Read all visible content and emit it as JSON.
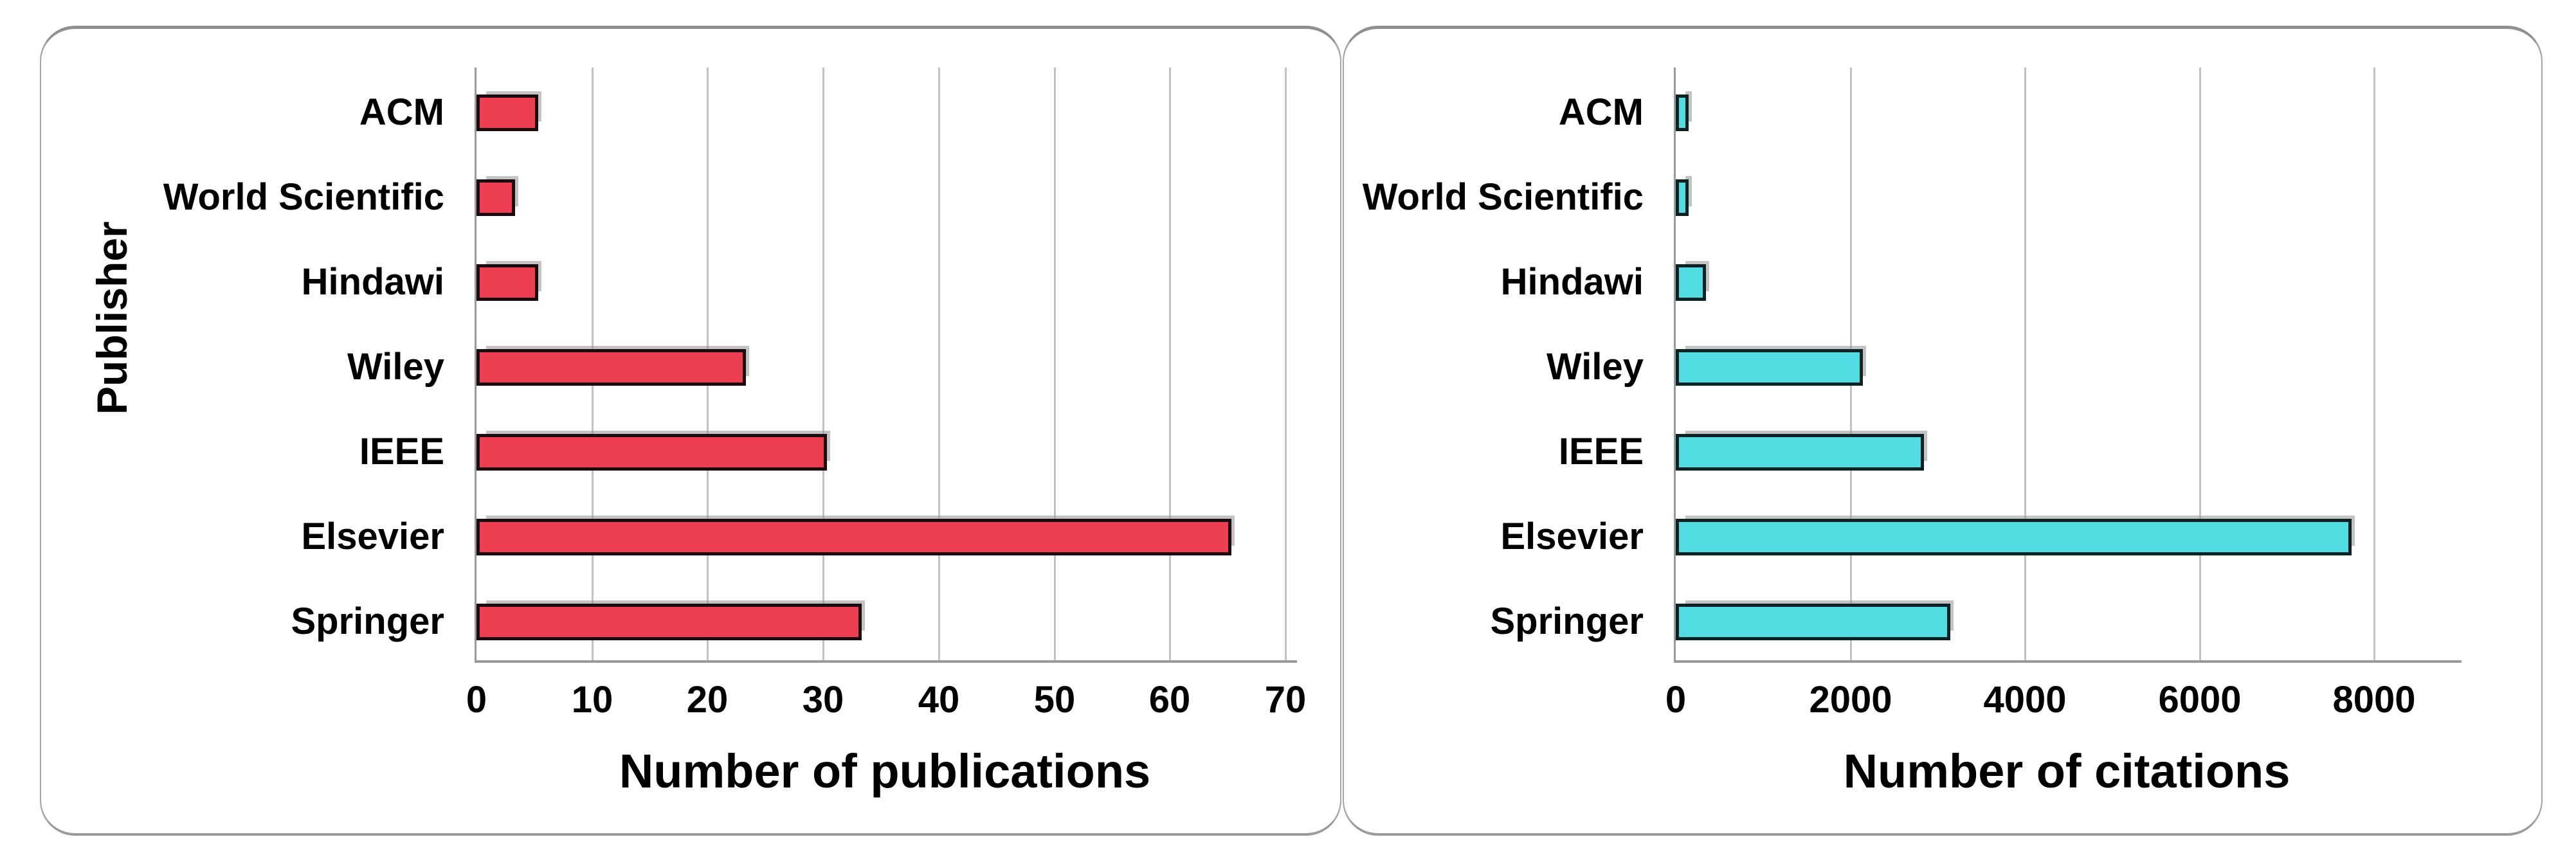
{
  "style": {
    "background": "#ffffff",
    "panel_border_color": "#9a9a9a",
    "grid_color": "#c2c2c2",
    "axis_color": "#9a9a9a",
    "text_color": "#000000",
    "publications_bar_color": "#ee3e52",
    "publications_bar_border": "#1c0b10",
    "citations_bar_color": "#52dce2",
    "citations_bar_border": "#0c2224"
  },
  "chart_data": [
    {
      "type": "bar",
      "orientation": "horizontal",
      "title": "",
      "categories": [
        "ACM",
        "World Scientific",
        "Hindawi",
        "Wiley",
        "IEEE",
        "Elsevier",
        "Springer"
      ],
      "values": [
        5,
        3,
        5,
        23,
        30,
        65,
        33
      ],
      "xlabel": "Number of publications",
      "ylabel": "Publisher",
      "xlim": [
        0,
        71
      ],
      "xticks": [
        0,
        10,
        20,
        30,
        40,
        50,
        60,
        70
      ],
      "grid": "vertical gridlines at every x tick",
      "legend": "none",
      "bar_color": "#ee3e52",
      "bar_border_color": "#1c0b10"
    },
    {
      "type": "bar",
      "orientation": "horizontal",
      "title": "",
      "categories": [
        "ACM",
        "World Scientific",
        "Hindawi",
        "Wiley",
        "IEEE",
        "Elsevier",
        "Springer"
      ],
      "values": [
        100,
        100,
        300,
        2100,
        2800,
        7700,
        3100
      ],
      "xlabel": "Number of citations",
      "ylabel": "",
      "xlim": [
        0,
        9000
      ],
      "xticks": [
        0,
        2000,
        4000,
        6000,
        8000
      ],
      "grid": "vertical gridlines at every x tick",
      "legend": "none",
      "bar_color": "#52dce2",
      "bar_border_color": "#0c2224"
    }
  ]
}
